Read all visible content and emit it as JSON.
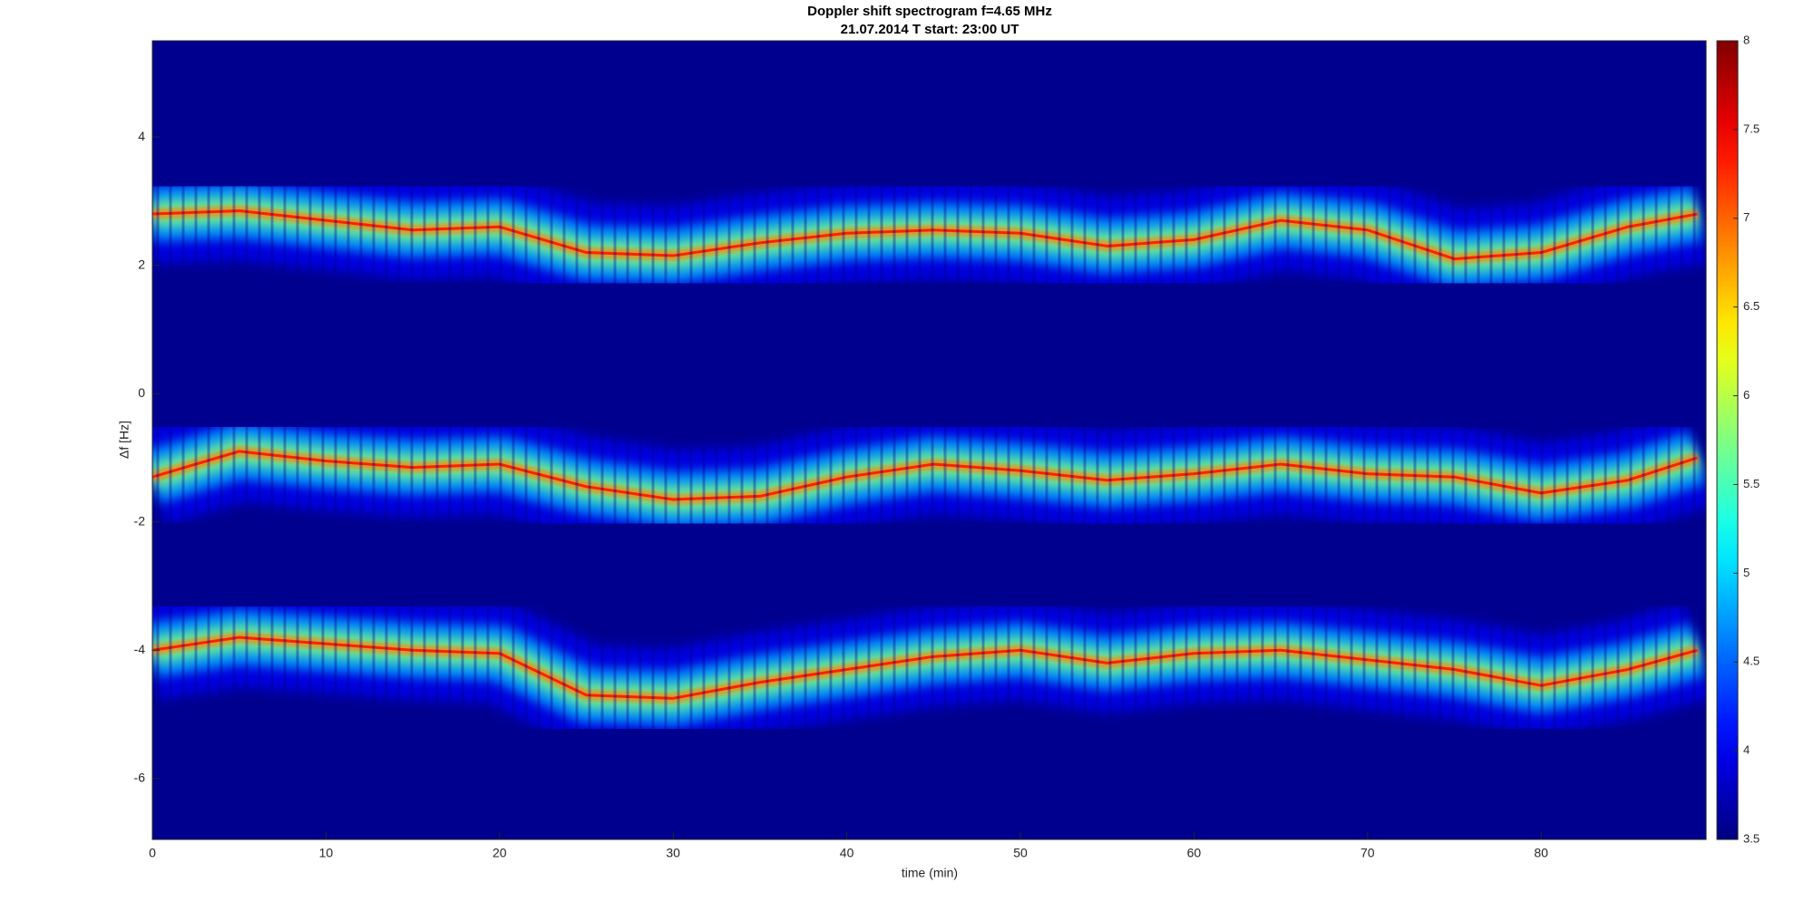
{
  "chart_data": {
    "type": "spectrogram",
    "title": "Doppler shift spectrogram f=4.65 MHz",
    "subtitle": "21.07.2014   T start: 23:00 UT",
    "x_label": "time (min)",
    "y_label": "Δf [Hz]",
    "xlim": [
      0,
      89.5
    ],
    "xticks": [
      0,
      10,
      20,
      30,
      40,
      50,
      60,
      70,
      80
    ],
    "ylim": [
      -6.95,
      5.5
    ],
    "yticks": [
      -6,
      -4,
      -2,
      0,
      2,
      4
    ],
    "colormap": "jet",
    "background": "#00008f",
    "clim": [
      3.5,
      8
    ],
    "cticks": [
      3.5,
      4,
      4.5,
      5,
      5.5,
      6,
      6.5,
      7,
      7.5,
      8
    ],
    "x": [
      0,
      5,
      10,
      15,
      20,
      25,
      30,
      35,
      40,
      45,
      50,
      55,
      60,
      65,
      70,
      75,
      80,
      85,
      89
    ],
    "series": [
      {
        "color": "#ff2000",
        "values": [
          2.8,
          2.85,
          2.7,
          2.55,
          2.6,
          2.2,
          2.15,
          2.35,
          2.5,
          2.55,
          2.5,
          2.3,
          2.4,
          2.7,
          2.55,
          2.1,
          2.2,
          2.6,
          2.8
        ]
      },
      {
        "color": "#ff2000",
        "values": [
          -1.3,
          -0.9,
          -1.05,
          -1.15,
          -1.1,
          -1.45,
          -1.65,
          -1.6,
          -1.3,
          -1.1,
          -1.2,
          -1.35,
          -1.25,
          -1.1,
          -1.25,
          -1.3,
          -1.55,
          -1.35,
          -1.0
        ]
      },
      {
        "color": "#ff2000",
        "values": [
          -4.0,
          -3.8,
          -3.9,
          -4.0,
          -4.05,
          -4.7,
          -4.75,
          -4.5,
          -4.3,
          -4.1,
          -4.0,
          -4.2,
          -4.05,
          -4.0,
          -4.15,
          -4.3,
          -4.55,
          -4.3,
          -4.0
        ]
      }
    ]
  }
}
